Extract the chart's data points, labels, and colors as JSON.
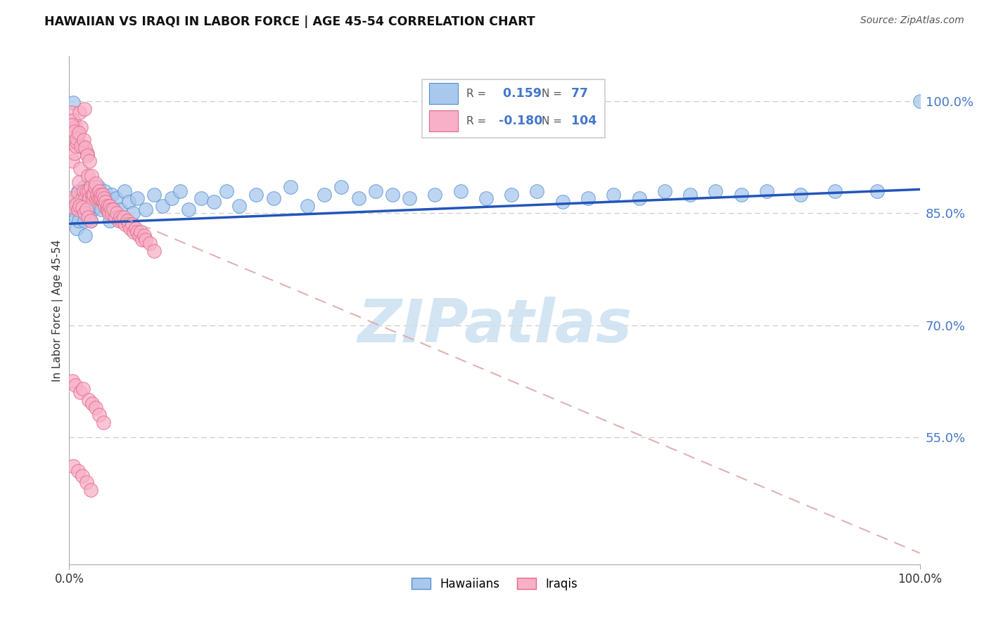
{
  "title": "HAWAIIAN VS IRAQI IN LABOR FORCE | AGE 45-54 CORRELATION CHART",
  "source": "Source: ZipAtlas.com",
  "ylabel": "In Labor Force | Age 45-54",
  "legend_hawaiians": "Hawaiians",
  "legend_iraqis": "Iraqis",
  "r_hawaiian": 0.159,
  "n_hawaiian": 77,
  "r_iraqi": -0.18,
  "n_iraqi": 104,
  "blue_fill": "#a8c8ee",
  "blue_edge": "#5590d0",
  "pink_fill": "#f8b0c8",
  "pink_edge": "#e06888",
  "blue_line": "#2255bb",
  "pink_line": "#ddaaaa",
  "watermark_color": "#cce0f0",
  "grid_color": "#cccccc",
  "ytick_color": "#4477cc",
  "yticks": [
    0.55,
    0.7,
    0.85,
    1.0
  ],
  "ytick_labels": [
    "55.0%",
    "70.0%",
    "85.0%",
    "100.0%"
  ],
  "xmin": 0.0,
  "xmax": 1.0,
  "ymin": 0.38,
  "ymax": 1.06,
  "haw_line_x0": 0.0,
  "haw_line_x1": 1.0,
  "haw_line_y0": 0.836,
  "haw_line_y1": 0.882,
  "iraqi_line_x0": 0.0,
  "iraqi_line_x1": 1.0,
  "iraqi_line_y0": 0.875,
  "iraqi_line_y1": 0.395,
  "hawaiian_x": [
    0.003,
    0.005,
    0.006,
    0.007,
    0.008,
    0.009,
    0.01,
    0.011,
    0.012,
    0.013,
    0.015,
    0.016,
    0.017,
    0.018,
    0.019,
    0.02,
    0.021,
    0.022,
    0.023,
    0.024,
    0.025,
    0.026,
    0.028,
    0.03,
    0.032,
    0.034,
    0.036,
    0.038,
    0.04,
    0.042,
    0.045,
    0.048,
    0.05,
    0.055,
    0.06,
    0.065,
    0.07,
    0.075,
    0.08,
    0.09,
    0.1,
    0.11,
    0.12,
    0.13,
    0.14,
    0.155,
    0.17,
    0.185,
    0.2,
    0.22,
    0.24,
    0.26,
    0.28,
    0.3,
    0.32,
    0.34,
    0.36,
    0.38,
    0.4,
    0.43,
    0.46,
    0.49,
    0.52,
    0.55,
    0.58,
    0.61,
    0.64,
    0.67,
    0.7,
    0.73,
    0.76,
    0.79,
    0.82,
    0.86,
    0.9,
    0.95,
    1.0
  ],
  "hawaiian_y": [
    0.855,
    0.998,
    0.86,
    0.87,
    0.845,
    0.83,
    0.88,
    0.84,
    0.875,
    0.86,
    0.87,
    0.855,
    0.885,
    0.84,
    0.82,
    0.865,
    0.875,
    0.85,
    0.87,
    0.885,
    0.84,
    0.865,
    0.855,
    0.87,
    0.86,
    0.885,
    0.875,
    0.855,
    0.87,
    0.88,
    0.865,
    0.84,
    0.875,
    0.87,
    0.855,
    0.88,
    0.865,
    0.85,
    0.87,
    0.855,
    0.875,
    0.86,
    0.87,
    0.88,
    0.855,
    0.87,
    0.865,
    0.88,
    0.86,
    0.875,
    0.87,
    0.885,
    0.86,
    0.875,
    0.885,
    0.87,
    0.88,
    0.875,
    0.87,
    0.875,
    0.88,
    0.87,
    0.875,
    0.88,
    0.865,
    0.87,
    0.875,
    0.87,
    0.88,
    0.875,
    0.88,
    0.875,
    0.88,
    0.875,
    0.88,
    0.88,
    1.0
  ],
  "iraqi_x": [
    0.002,
    0.003,
    0.004,
    0.005,
    0.006,
    0.007,
    0.008,
    0.009,
    0.01,
    0.01,
    0.011,
    0.012,
    0.013,
    0.014,
    0.015,
    0.016,
    0.017,
    0.018,
    0.019,
    0.02,
    0.021,
    0.022,
    0.023,
    0.024,
    0.025,
    0.026,
    0.027,
    0.028,
    0.029,
    0.03,
    0.031,
    0.032,
    0.033,
    0.034,
    0.035,
    0.036,
    0.037,
    0.038,
    0.039,
    0.04,
    0.041,
    0.042,
    0.043,
    0.044,
    0.045,
    0.046,
    0.047,
    0.048,
    0.049,
    0.05,
    0.052,
    0.054,
    0.056,
    0.058,
    0.06,
    0.062,
    0.064,
    0.066,
    0.068,
    0.07,
    0.072,
    0.074,
    0.076,
    0.078,
    0.08,
    0.082,
    0.084,
    0.086,
    0.088,
    0.09,
    0.095,
    0.1,
    0.005,
    0.008,
    0.01,
    0.012,
    0.015,
    0.018,
    0.02,
    0.022,
    0.025,
    0.003,
    0.006,
    0.009,
    0.011,
    0.014,
    0.017,
    0.019,
    0.021,
    0.024,
    0.004,
    0.007,
    0.013,
    0.016,
    0.023,
    0.027,
    0.031,
    0.035,
    0.04,
    0.005,
    0.01,
    0.015,
    0.02,
    0.025
  ],
  "iraqi_y": [
    0.87,
    0.985,
    0.92,
    0.975,
    0.93,
    0.965,
    0.94,
    0.945,
    0.955,
    0.878,
    0.892,
    0.985,
    0.91,
    0.965,
    0.87,
    0.94,
    0.88,
    0.99,
    0.87,
    0.88,
    0.93,
    0.9,
    0.88,
    0.87,
    0.885,
    0.9,
    0.875,
    0.87,
    0.875,
    0.885,
    0.89,
    0.87,
    0.875,
    0.87,
    0.88,
    0.87,
    0.875,
    0.87,
    0.875,
    0.865,
    0.87,
    0.86,
    0.865,
    0.855,
    0.86,
    0.855,
    0.85,
    0.86,
    0.855,
    0.85,
    0.855,
    0.845,
    0.85,
    0.84,
    0.845,
    0.84,
    0.845,
    0.835,
    0.84,
    0.835,
    0.83,
    0.835,
    0.825,
    0.83,
    0.825,
    0.82,
    0.825,
    0.815,
    0.82,
    0.815,
    0.81,
    0.8,
    0.858,
    0.862,
    0.855,
    0.86,
    0.858,
    0.85,
    0.855,
    0.845,
    0.84,
    0.968,
    0.96,
    0.95,
    0.958,
    0.94,
    0.948,
    0.938,
    0.928,
    0.92,
    0.625,
    0.62,
    0.61,
    0.615,
    0.6,
    0.595,
    0.59,
    0.58,
    0.57,
    0.512,
    0.505,
    0.498,
    0.49,
    0.48
  ]
}
